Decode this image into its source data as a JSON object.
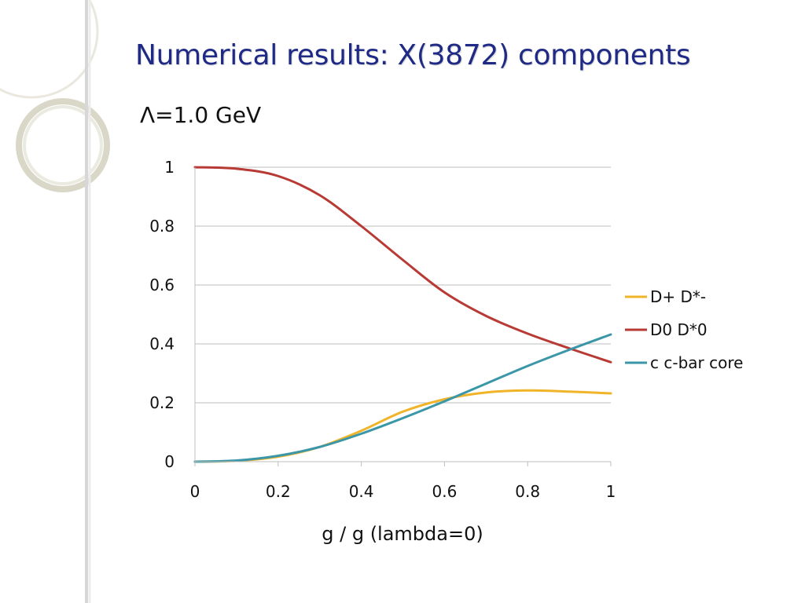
{
  "slide": {
    "title": "Numerical results: X(3872) components"
  },
  "colors": {
    "title": "#1f2a86",
    "deco_ring": "#c9c6b0",
    "grid": "#bdbdbd"
  },
  "chart_data": {
    "type": "line",
    "title": "Λ=1.0 GeV",
    "xlabel": "g / g (lambda=0)",
    "ylabel": "",
    "xlim": [
      0,
      1
    ],
    "ylim": [
      0,
      1
    ],
    "x_ticks": [
      0,
      0.2,
      0.4,
      0.6,
      0.8,
      1
    ],
    "x_tick_labels": [
      "0",
      "0.2",
      "0.4",
      "0.6",
      "0.8",
      "1"
    ],
    "y_ticks": [
      0,
      0.2,
      0.4,
      0.6,
      0.8,
      1
    ],
    "y_tick_labels": [
      "0",
      "0.2",
      "0.4",
      "0.6",
      "0.8",
      "1"
    ],
    "grid": "horizontal",
    "legend_position": "right",
    "x": [
      0,
      0.1,
      0.2,
      0.3,
      0.4,
      0.5,
      0.6,
      0.7,
      0.8,
      0.9,
      1.0
    ],
    "series": [
      {
        "name": "D+ D*-",
        "color": "#f0b429",
        "values": [
          0,
          0.003,
          0.017,
          0.05,
          0.105,
          0.17,
          0.212,
          0.235,
          0.242,
          0.238,
          0.232
        ]
      },
      {
        "name": "D0 D*0",
        "color": "#b83a34",
        "values": [
          1.0,
          0.995,
          0.97,
          0.905,
          0.8,
          0.685,
          0.575,
          0.495,
          0.435,
          0.385,
          0.338
        ]
      },
      {
        "name": "c c-bar core",
        "color": "#3b97a8",
        "values": [
          0,
          0.004,
          0.02,
          0.05,
          0.095,
          0.148,
          0.205,
          0.265,
          0.325,
          0.38,
          0.432
        ]
      }
    ]
  }
}
